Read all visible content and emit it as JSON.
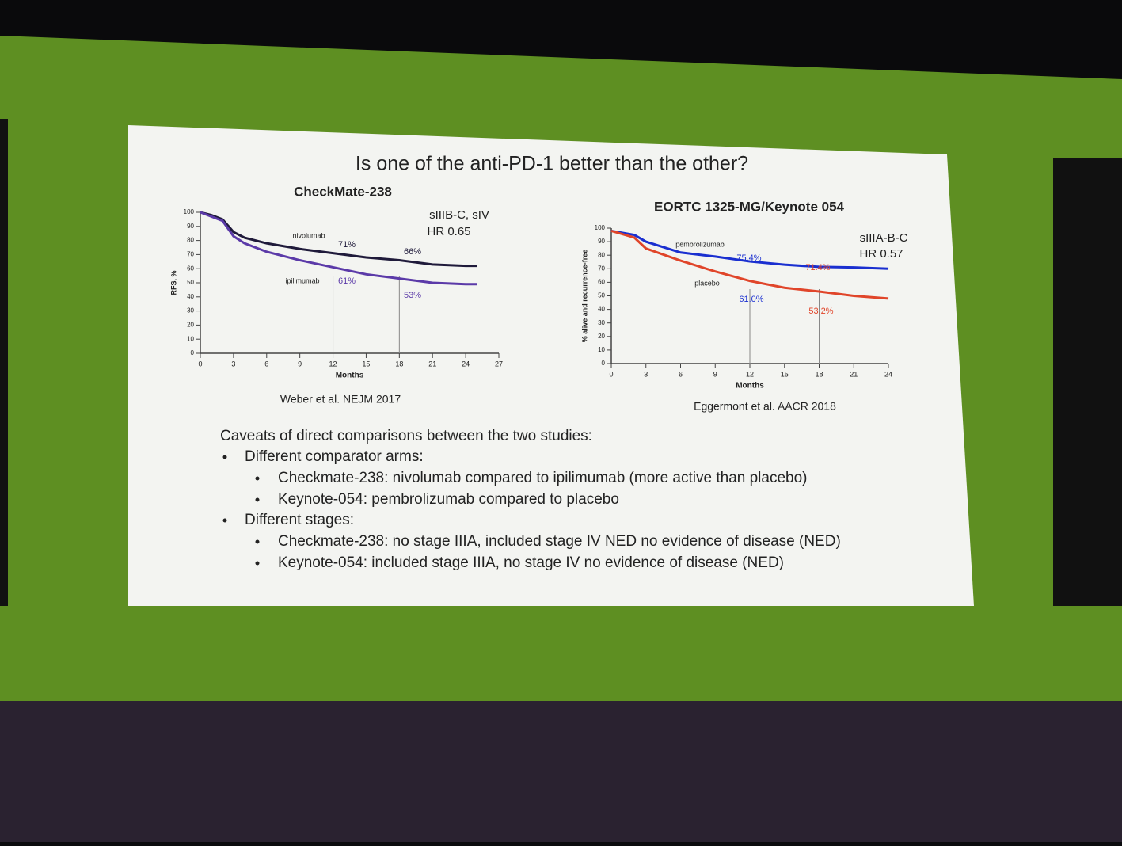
{
  "title": "Is one of the anti-PD-1 better than the other?",
  "chart_data": [
    {
      "type": "line",
      "title": "CheckMate-238",
      "xlabel": "Months",
      "ylabel": "RFS, %",
      "x": [
        0,
        1,
        2,
        3,
        4,
        6,
        9,
        12,
        15,
        18,
        21,
        24,
        25
      ],
      "series": [
        {
          "name": "nivolumab",
          "color": "#1f1a3a",
          "values": [
            100,
            98,
            95,
            86,
            82,
            78,
            74,
            71,
            68,
            66,
            63,
            62,
            62
          ]
        },
        {
          "name": "ipilimumab",
          "color": "#5b3aa8",
          "values": [
            100,
            97,
            94,
            83,
            78,
            72,
            66,
            61,
            56,
            53,
            50,
            49,
            49
          ]
        }
      ],
      "xlim": [
        0,
        27
      ],
      "xticks": [
        0,
        3,
        6,
        9,
        12,
        15,
        18,
        21,
        24,
        27
      ],
      "ylim": [
        0,
        100
      ],
      "yticks": [
        0,
        10,
        20,
        30,
        40,
        50,
        60,
        70,
        80,
        90,
        100
      ],
      "annotations": [
        "71%",
        "61%",
        "66%",
        "53%",
        "sIIIB-C, sIV",
        "HR 0.65"
      ],
      "source": "Weber et al. NEJM 2017"
    },
    {
      "type": "line",
      "title": "EORTC 1325-MG/Keynote 054",
      "xlabel": "Months",
      "ylabel": "% alive and recurrence-free",
      "x": [
        0,
        2,
        3,
        6,
        9,
        12,
        15,
        18,
        21,
        24
      ],
      "series": [
        {
          "name": "pembrolizumab",
          "color": "#1a2fd0",
          "values": [
            98,
            95,
            90,
            82,
            79,
            75.4,
            73,
            71.4,
            71,
            70
          ]
        },
        {
          "name": "placebo",
          "color": "#e0452a",
          "values": [
            98,
            93,
            85,
            76,
            68,
            61,
            56,
            53.2,
            50,
            48
          ]
        }
      ],
      "xlim": [
        0,
        24
      ],
      "xticks": [
        0,
        3,
        6,
        9,
        12,
        15,
        18,
        21,
        24
      ],
      "ylim": [
        0,
        100
      ],
      "yticks": [
        0,
        10,
        20,
        30,
        40,
        50,
        60,
        70,
        80,
        90,
        100
      ],
      "annotations": [
        "75.4%",
        "71.4%",
        "61.0%",
        "53.2%",
        "sIIIA-B-C",
        "HR 0.57"
      ],
      "source": "Eggermont et al. AACR 2018"
    }
  ],
  "caveats": {
    "heading": "Caveats of direct comparisons between the two studies:",
    "items": [
      {
        "text": "Different comparator arms:",
        "subitems": [
          "Checkmate-238: nivolumab compared to ipilimumab (more active than placebo)",
          "Keynote-054: pembrolizumab compared to placebo"
        ]
      },
      {
        "text": "Different stages:",
        "subitems": [
          "Checkmate-238: no stage IIIA, included stage IV NED no evidence of disease (NED)",
          "Keynote-054: included stage IIIA, no stage IV no evidence of disease (NED)"
        ]
      }
    ]
  }
}
